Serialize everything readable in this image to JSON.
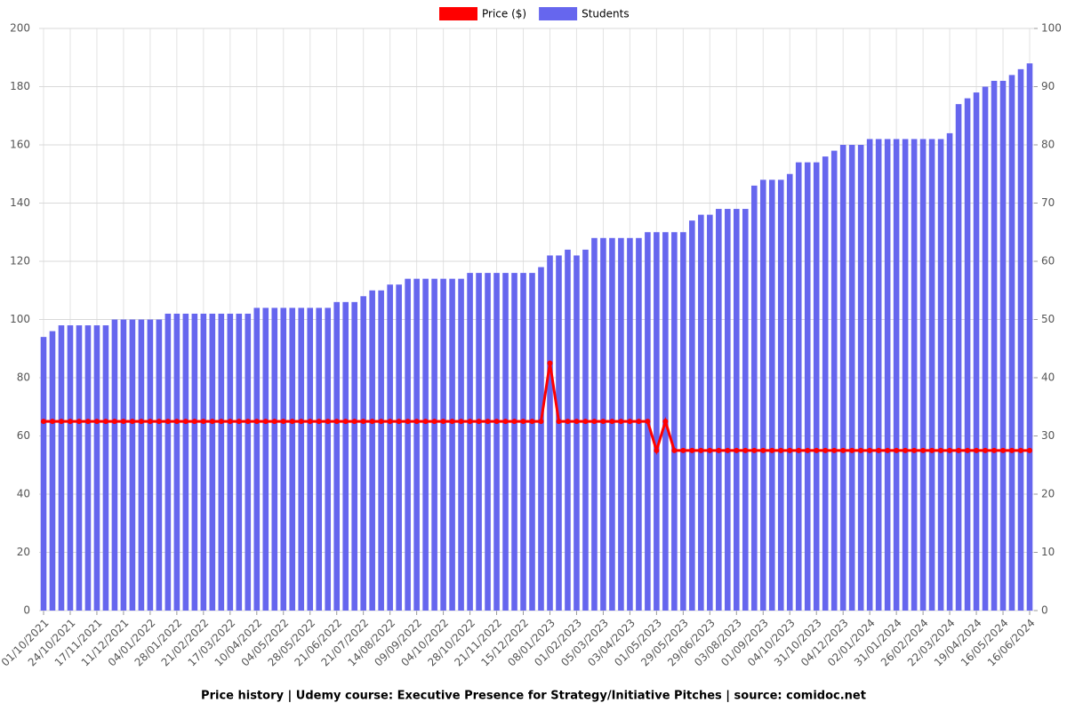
{
  "chart_data": {
    "type": "bar_line",
    "title": "Price history | Udemy course: Executive Presence for Strategy/Initiative Pitches | source: comidoc.net",
    "categories": [
      "01/10/2021",
      null,
      null,
      "24/10/2021",
      null,
      null,
      "17/11/2021",
      null,
      null,
      "11/12/2021",
      null,
      null,
      "04/01/2022",
      null,
      null,
      "28/01/2022",
      null,
      null,
      "21/02/2022",
      null,
      null,
      "17/03/2022",
      null,
      null,
      "10/04/2022",
      null,
      null,
      "04/05/2022",
      null,
      null,
      "28/05/2022",
      null,
      null,
      "21/06/2022",
      null,
      null,
      "21/07/2022",
      null,
      null,
      "14/08/2022",
      null,
      null,
      "09/09/2022",
      null,
      null,
      "04/10/2022",
      null,
      null,
      "28/10/2022",
      null,
      null,
      "21/11/2022",
      null,
      null,
      "15/12/2022",
      null,
      null,
      "08/01/2023",
      null,
      null,
      "01/02/2023",
      null,
      null,
      "05/03/2023",
      null,
      null,
      "03/04/2023",
      null,
      null,
      "01/05/2023",
      null,
      null,
      "29/05/2023",
      null,
      null,
      "29/06/2023",
      null,
      null,
      "03/08/2023",
      null,
      null,
      "01/09/2023",
      null,
      null,
      "04/10/2023",
      null,
      null,
      "31/10/2023",
      null,
      null,
      "04/12/2023",
      null,
      null,
      "02/01/2024",
      null,
      null,
      "31/01/2024",
      null,
      null,
      "26/02/2024",
      null,
      null,
      "22/03/2024",
      null,
      null,
      "19/04/2024",
      null,
      null,
      "16/05/2024",
      null,
      null,
      "16/06/2024"
    ],
    "series": [
      {
        "name": "Price ($)",
        "color": "#ff0000",
        "kind": "line",
        "values": [
          65,
          65,
          65,
          65,
          65,
          65,
          65,
          65,
          65,
          65,
          65,
          65,
          65,
          65,
          65,
          65,
          65,
          65,
          65,
          65,
          65,
          65,
          65,
          65,
          65,
          65,
          65,
          65,
          65,
          65,
          65,
          65,
          65,
          65,
          65,
          65,
          65,
          65,
          65,
          65,
          65,
          65,
          65,
          65,
          65,
          65,
          65,
          65,
          65,
          65,
          65,
          65,
          65,
          65,
          65,
          65,
          65,
          85,
          65,
          65,
          65,
          65,
          65,
          65,
          65,
          65,
          65,
          65,
          65,
          55,
          65,
          55,
          55,
          55,
          55,
          55,
          55,
          55,
          55,
          55,
          55,
          55,
          55,
          55,
          55,
          55,
          55,
          55,
          55,
          55,
          55,
          55,
          55,
          55,
          55,
          55,
          55,
          55,
          55,
          55,
          55,
          55,
          55,
          55,
          55,
          55,
          55,
          55,
          55,
          55,
          55,
          55
        ]
      },
      {
        "name": "Students",
        "color": "#6666ee",
        "kind": "bar",
        "axis": "y2",
        "values": [
          47,
          48,
          49,
          49,
          49,
          49,
          49,
          49,
          50,
          50,
          50,
          50,
          50,
          50,
          51,
          51,
          51,
          51,
          51,
          51,
          51,
          51,
          51,
          51,
          52,
          52,
          52,
          52,
          52,
          52,
          52,
          52,
          52,
          53,
          53,
          53,
          54,
          55,
          55,
          56,
          56,
          57,
          57,
          57,
          57,
          57,
          57,
          57,
          58,
          58,
          58,
          58,
          58,
          58,
          58,
          58,
          59,
          61,
          61,
          62,
          61,
          62,
          64,
          64,
          64,
          64,
          64,
          64,
          65,
          65,
          65,
          65,
          65,
          67,
          68,
          68,
          69,
          69,
          69,
          69,
          73,
          74,
          74,
          74,
          75,
          77,
          77,
          77,
          78,
          79,
          80,
          80,
          80,
          81,
          81,
          81,
          81,
          81,
          81,
          81,
          81,
          81,
          82,
          87,
          88,
          89,
          90,
          91,
          91,
          92,
          93,
          94
        ]
      }
    ],
    "ylim": [
      0,
      200
    ],
    "yticks": [
      0,
      20,
      40,
      60,
      80,
      100,
      120,
      140,
      160,
      180,
      200
    ],
    "y2lim": [
      0,
      100
    ],
    "y2ticks": [
      0,
      10,
      20,
      30,
      40,
      50,
      60,
      70,
      80,
      90,
      100
    ],
    "grid": true,
    "legend": "top"
  }
}
